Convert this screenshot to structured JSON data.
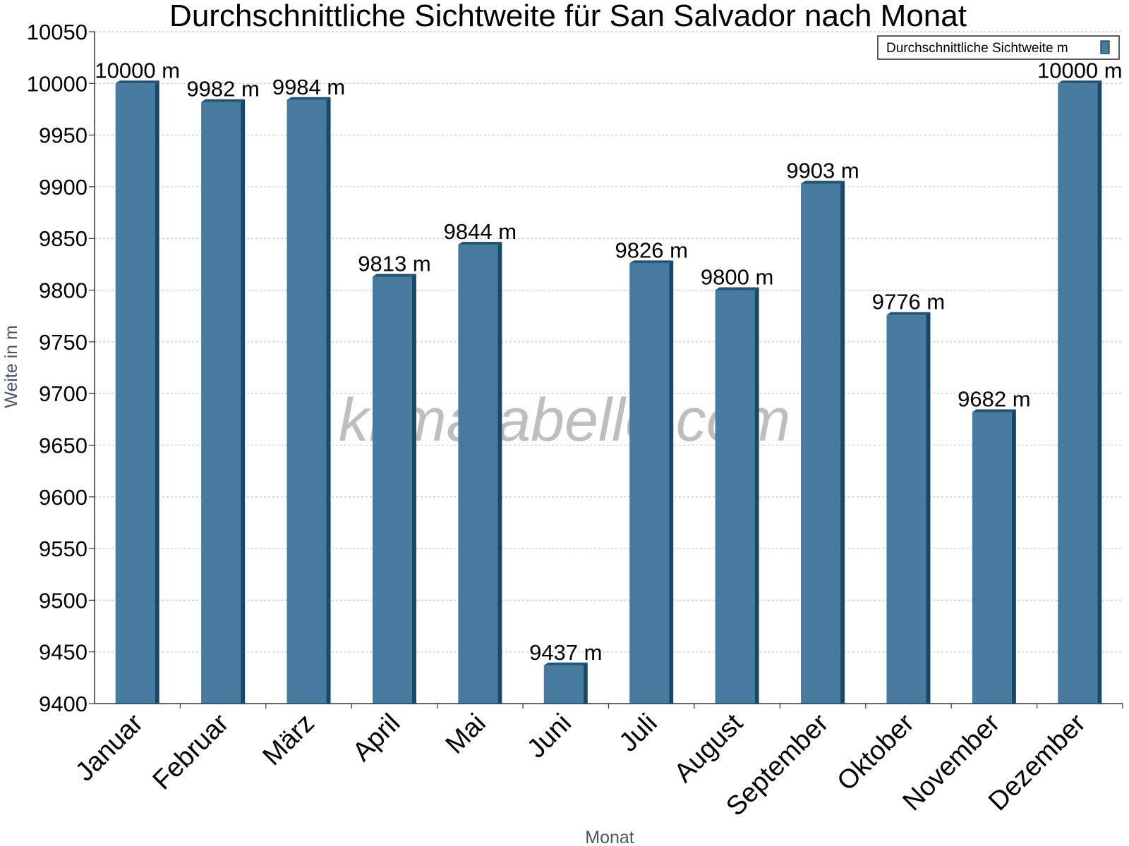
{
  "watermark": "klimatabelle.com",
  "colors": {
    "bar_face": "#467a9e",
    "bar_top": "#1f5679",
    "bar_side": "#17486a",
    "grid": "#c8c8c8",
    "axis": "#333333"
  },
  "chart_data": {
    "type": "bar",
    "title": "Durchschnittliche Sichtweite für San Salvador nach Monat",
    "xlabel": "Monat",
    "ylabel": "Weite in m",
    "ylim": [
      9400,
      10050
    ],
    "y_ticks": [
      9400,
      9450,
      9500,
      9550,
      9600,
      9650,
      9700,
      9750,
      9800,
      9850,
      9900,
      9950,
      10000,
      10050
    ],
    "grid": true,
    "legend_position": "top-right",
    "categories": [
      "Januar",
      "Februar",
      "März",
      "April",
      "Mai",
      "Juni",
      "Juli",
      "August",
      "September",
      "Oktober",
      "November",
      "Dezember"
    ],
    "series": [
      {
        "name": "Durchschnittliche Sichtweite m",
        "values": [
          10000,
          9982,
          9984,
          9813,
          9844,
          9437,
          9826,
          9800,
          9903,
          9776,
          9682,
          10000
        ],
        "labels": [
          "10000 m",
          "9982 m",
          "9984 m",
          "9813 m",
          "9844 m",
          "9437 m",
          "9826 m",
          "9800 m",
          "9903 m",
          "9776 m",
          "9682 m",
          "10000 m"
        ]
      }
    ]
  }
}
